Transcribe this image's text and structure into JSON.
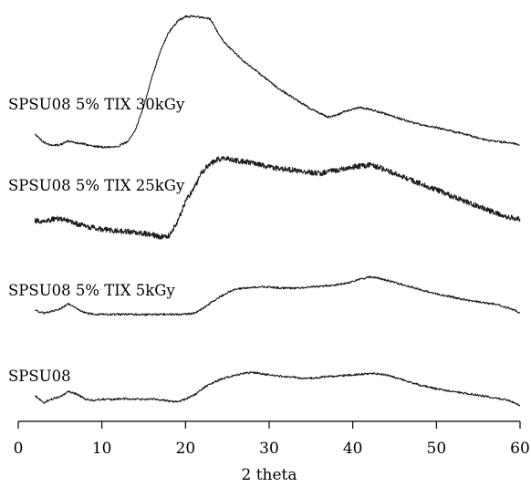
{
  "chart_data": {
    "type": "line",
    "xlabel": "2 theta",
    "ylabel": "",
    "xlim": [
      0,
      60
    ],
    "xticks": [
      0,
      10,
      20,
      30,
      40,
      50,
      60
    ],
    "grid": false,
    "legend": "inline labels above each trace",
    "y_axis": "none (traces vertically offset, arbitrary intensity)",
    "series": [
      {
        "name": "SPSU08 5% TIX 30kGy",
        "noise": "low",
        "x": [
          2,
          3,
          4,
          5,
          6,
          7,
          8,
          9,
          10,
          11,
          12,
          13,
          14,
          15,
          16,
          17,
          18,
          19,
          20,
          21,
          22,
          23,
          24,
          25,
          26,
          27,
          28,
          29,
          30,
          31,
          32,
          33,
          34,
          35,
          36,
          37,
          38,
          39,
          40,
          41,
          42,
          43,
          44,
          45,
          46,
          47,
          48,
          49,
          50,
          51,
          52,
          53,
          54,
          55,
          56,
          57,
          58,
          59,
          60
        ],
        "y": [
          0.55,
          0.25,
          0.12,
          0.15,
          0.28,
          0.22,
          0.16,
          0.1,
          0.06,
          0.06,
          0.1,
          0.25,
          0.7,
          1.6,
          2.7,
          3.7,
          4.4,
          4.8,
          5.0,
          5.0,
          4.95,
          4.9,
          4.3,
          3.9,
          3.6,
          3.3,
          3.05,
          2.8,
          2.55,
          2.3,
          2.1,
          1.9,
          1.7,
          1.5,
          1.35,
          1.2,
          1.25,
          1.4,
          1.5,
          1.55,
          1.5,
          1.4,
          1.3,
          1.2,
          1.1,
          1.0,
          0.92,
          0.85,
          0.8,
          0.72,
          0.65,
          0.58,
          0.5,
          0.4,
          0.32,
          0.28,
          0.25,
          0.2,
          0.15
        ]
      },
      {
        "name": "SPSU08 5% TIX 25kGy",
        "noise": "high",
        "x": [
          2,
          3,
          4,
          5,
          6,
          7,
          8,
          9,
          10,
          11,
          12,
          13,
          14,
          15,
          16,
          17,
          18,
          19,
          20,
          21,
          22,
          23,
          24,
          25,
          26,
          27,
          28,
          29,
          30,
          31,
          32,
          33,
          34,
          35,
          36,
          37,
          38,
          39,
          40,
          41,
          42,
          43,
          44,
          45,
          46,
          47,
          48,
          49,
          50,
          51,
          52,
          53,
          54,
          55,
          56,
          57,
          58,
          59,
          60
        ],
        "y": [
          0.6,
          0.6,
          0.65,
          0.68,
          0.62,
          0.52,
          0.45,
          0.4,
          0.35,
          0.32,
          0.3,
          0.28,
          0.25,
          0.22,
          0.18,
          0.12,
          0.15,
          0.55,
          1.2,
          1.6,
          2.1,
          2.35,
          2.5,
          2.5,
          2.45,
          2.4,
          2.38,
          2.3,
          2.25,
          2.2,
          2.18,
          2.15,
          2.1,
          2.08,
          2.05,
          2.1,
          2.15,
          2.2,
          2.25,
          2.28,
          2.3,
          2.25,
          2.15,
          2.05,
          1.95,
          1.85,
          1.75,
          1.65,
          1.55,
          1.45,
          1.35,
          1.25,
          1.15,
          1.05,
          0.95,
          0.85,
          0.75,
          0.7,
          0.65
        ]
      },
      {
        "name": "SPSU08 5% TIX 5kGy",
        "noise": "low",
        "x": [
          2,
          3,
          4,
          5,
          6,
          7,
          8,
          9,
          10,
          11,
          12,
          13,
          14,
          15,
          16,
          17,
          18,
          19,
          20,
          21,
          22,
          23,
          24,
          25,
          26,
          27,
          28,
          29,
          30,
          31,
          32,
          33,
          34,
          35,
          36,
          37,
          38,
          39,
          40,
          41,
          42,
          43,
          44,
          45,
          46,
          47,
          48,
          49,
          50,
          51,
          52,
          53,
          54,
          55,
          56,
          57,
          58,
          59,
          60
        ],
        "y": [
          0.25,
          0.1,
          0.2,
          0.3,
          0.5,
          0.3,
          0.12,
          0.05,
          0.06,
          0.05,
          0.05,
          0.06,
          0.05,
          0.04,
          0.05,
          0.05,
          0.05,
          0.05,
          0.06,
          0.1,
          0.3,
          0.55,
          0.8,
          1.0,
          1.15,
          1.2,
          1.25,
          1.25,
          1.25,
          1.22,
          1.2,
          1.2,
          1.22,
          1.25,
          1.28,
          1.3,
          1.35,
          1.4,
          1.5,
          1.6,
          1.7,
          1.65,
          1.55,
          1.45,
          1.35,
          1.25,
          1.15,
          1.05,
          0.95,
          0.88,
          0.8,
          0.72,
          0.65,
          0.6,
          0.55,
          0.5,
          0.4,
          0.3,
          0.1
        ]
      },
      {
        "name": "SPSU08",
        "noise": "low",
        "x": [
          2,
          3,
          4,
          5,
          6,
          7,
          8,
          9,
          10,
          11,
          12,
          13,
          14,
          15,
          16,
          17,
          18,
          19,
          20,
          21,
          22,
          23,
          24,
          25,
          26,
          27,
          28,
          29,
          30,
          31,
          32,
          33,
          34,
          35,
          36,
          37,
          38,
          39,
          40,
          41,
          42,
          43,
          44,
          45,
          46,
          47,
          48,
          49,
          50,
          51,
          52,
          53,
          54,
          55,
          56,
          57,
          58,
          59,
          60
        ],
        "y": [
          0.45,
          0.15,
          0.3,
          0.4,
          0.6,
          0.5,
          0.3,
          0.25,
          0.3,
          0.28,
          0.3,
          0.32,
          0.3,
          0.28,
          0.3,
          0.28,
          0.22,
          0.2,
          0.3,
          0.45,
          0.7,
          0.9,
          1.05,
          1.15,
          1.25,
          1.3,
          1.35,
          1.3,
          1.25,
          1.2,
          1.18,
          1.15,
          1.1,
          1.12,
          1.15,
          1.18,
          1.2,
          1.22,
          1.25,
          1.28,
          1.3,
          1.3,
          1.25,
          1.15,
          1.05,
          0.95,
          0.85,
          0.78,
          0.7,
          0.65,
          0.6,
          0.55,
          0.5,
          0.45,
          0.4,
          0.35,
          0.3,
          0.2,
          0.05
        ]
      }
    ]
  }
}
